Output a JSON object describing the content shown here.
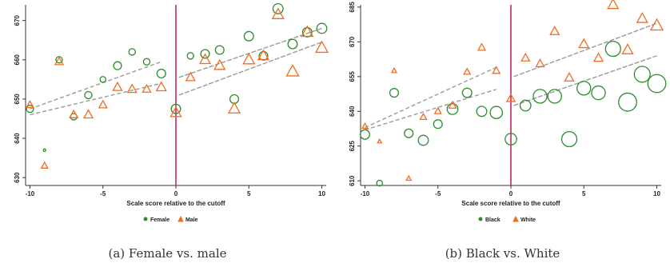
{
  "chart_data": [
    {
      "type": "scatter",
      "xlabel": "Scale score relative to the cutoff",
      "ylabel": "",
      "xlim": [
        -10.3,
        10.3
      ],
      "ylim": [
        628,
        674
      ],
      "x_ticks": [
        -10,
        -5,
        0,
        5,
        10
      ],
      "y_ticks": [
        630,
        640,
        650,
        660,
        670
      ],
      "y_tick_labels": [
        "630",
        "640",
        "650",
        "660",
        "670"
      ],
      "cutoff_x": 0,
      "legend_position": "bottom",
      "series": [
        {
          "name": "Female",
          "marker": "circle",
          "color": "#2e8b2e",
          "points": [
            {
              "x": -10,
              "y": 647.5,
              "s": 1.0
            },
            {
              "x": -9,
              "y": 637.0,
              "s": 0.35
            },
            {
              "x": -8,
              "y": 660.0,
              "s": 0.9
            },
            {
              "x": -7,
              "y": 645.5,
              "s": 0.9
            },
            {
              "x": -6,
              "y": 651.0,
              "s": 1.0
            },
            {
              "x": -5,
              "y": 655.0,
              "s": 0.8
            },
            {
              "x": -4,
              "y": 658.5,
              "s": 1.1
            },
            {
              "x": -3,
              "y": 662.0,
              "s": 0.9
            },
            {
              "x": -2,
              "y": 659.5,
              "s": 0.9
            },
            {
              "x": -1,
              "y": 656.5,
              "s": 1.2
            },
            {
              "x": 0,
              "y": 647.5,
              "s": 1.3
            },
            {
              "x": 1,
              "y": 661.0,
              "s": 0.9
            },
            {
              "x": 2,
              "y": 661.5,
              "s": 1.2
            },
            {
              "x": 3,
              "y": 662.5,
              "s": 1.2
            },
            {
              "x": 4,
              "y": 650.0,
              "s": 1.2
            },
            {
              "x": 5,
              "y": 666.0,
              "s": 1.3
            },
            {
              "x": 6,
              "y": 661.0,
              "s": 1.2
            },
            {
              "x": 7,
              "y": 673.0,
              "s": 1.4
            },
            {
              "x": 8,
              "y": 664.0,
              "s": 1.3
            },
            {
              "x": 9,
              "y": 667.0,
              "s": 1.3
            },
            {
              "x": 10,
              "y": 668.0,
              "s": 1.4
            }
          ]
        },
        {
          "name": "Male",
          "marker": "triangle",
          "color": "#f26b21",
          "points": [
            {
              "x": -10,
              "y": 648.5,
              "s": 0.9
            },
            {
              "x": -9,
              "y": 633.0,
              "s": 0.8
            },
            {
              "x": -8,
              "y": 659.5,
              "s": 1.0
            },
            {
              "x": -7,
              "y": 646.0,
              "s": 1.0
            },
            {
              "x": -6,
              "y": 646.0,
              "s": 1.1
            },
            {
              "x": -5,
              "y": 648.5,
              "s": 1.0
            },
            {
              "x": -4,
              "y": 653.0,
              "s": 1.1
            },
            {
              "x": -3,
              "y": 652.5,
              "s": 1.1
            },
            {
              "x": -2,
              "y": 652.5,
              "s": 1.0
            },
            {
              "x": -1,
              "y": 653.0,
              "s": 1.2
            },
            {
              "x": 0,
              "y": 646.5,
              "s": 1.3
            },
            {
              "x": 1,
              "y": 655.5,
              "s": 1.1
            },
            {
              "x": 2,
              "y": 660.0,
              "s": 1.3
            },
            {
              "x": 3,
              "y": 658.5,
              "s": 1.3
            },
            {
              "x": 4,
              "y": 647.5,
              "s": 1.4
            },
            {
              "x": 5,
              "y": 660.0,
              "s": 1.4
            },
            {
              "x": 6,
              "y": 661.0,
              "s": 1.3
            },
            {
              "x": 7,
              "y": 671.5,
              "s": 1.4
            },
            {
              "x": 8,
              "y": 657.0,
              "s": 1.5
            },
            {
              "x": 9,
              "y": 667.0,
              "s": 1.4
            },
            {
              "x": 10,
              "y": 663.0,
              "s": 1.5
            }
          ]
        }
      ],
      "fit_lines": [
        {
          "x": [
            -10,
            -1
          ],
          "y": [
            647.5,
            659.5
          ]
        },
        {
          "x": [
            -10,
            -1
          ],
          "y": [
            646.0,
            654.0
          ]
        },
        {
          "x": [
            0.2,
            10
          ],
          "y": [
            655.5,
            668.0
          ]
        },
        {
          "x": [
            0.2,
            10
          ],
          "y": [
            651.0,
            664.5
          ]
        }
      ],
      "caption": "(a) Female vs. male"
    },
    {
      "type": "scatter",
      "xlabel": "Scale score relative to the cutoff",
      "ylabel": "",
      "xlim": [
        -10.3,
        10.3
      ],
      "ylim": [
        608,
        686
      ],
      "x_ticks": [
        -10,
        -5,
        0,
        5,
        10
      ],
      "y_ticks": [
        610,
        625,
        640,
        655,
        670,
        685
      ],
      "y_tick_labels": [
        "610",
        "625",
        "640",
        "655",
        "670",
        "685"
      ],
      "cutoff_x": 0,
      "legend_position": "bottom",
      "series": [
        {
          "name": "Black",
          "marker": "circle",
          "color": "#2e8b2e",
          "points": [
            {
              "x": -10,
              "y": 630.0,
              "s": 1.3
            },
            {
              "x": -9,
              "y": 609.0,
              "s": 0.8
            },
            {
              "x": -8,
              "y": 648.0,
              "s": 1.2
            },
            {
              "x": -7,
              "y": 630.5,
              "s": 1.2
            },
            {
              "x": -6,
              "y": 627.5,
              "s": 1.4
            },
            {
              "x": -5,
              "y": 634.5,
              "s": 1.2
            },
            {
              "x": -4,
              "y": 641.0,
              "s": 1.5
            },
            {
              "x": -3,
              "y": 648.0,
              "s": 1.3
            },
            {
              "x": -2,
              "y": 640.0,
              "s": 1.4
            },
            {
              "x": -1,
              "y": 639.5,
              "s": 1.7
            },
            {
              "x": 0,
              "y": 628.0,
              "s": 1.6
            },
            {
              "x": 1,
              "y": 642.5,
              "s": 1.5
            },
            {
              "x": 2,
              "y": 646.5,
              "s": 1.9
            },
            {
              "x": 3,
              "y": 646.5,
              "s": 1.9
            },
            {
              "x": 4,
              "y": 628.0,
              "s": 2.1
            },
            {
              "x": 5,
              "y": 650.0,
              "s": 1.9
            },
            {
              "x": 6,
              "y": 648.0,
              "s": 1.9
            },
            {
              "x": 7,
              "y": 667.0,
              "s": 2.1
            },
            {
              "x": 8,
              "y": 644.0,
              "s": 2.5
            },
            {
              "x": 9,
              "y": 656.0,
              "s": 2.2
            },
            {
              "x": 10,
              "y": 652.0,
              "s": 2.5
            }
          ]
        },
        {
          "name": "White",
          "marker": "triangle",
          "color": "#f26b21",
          "points": [
            {
              "x": -10,
              "y": 633.5,
              "s": 0.7
            },
            {
              "x": -9,
              "y": 627.0,
              "s": 0.5
            },
            {
              "x": -8,
              "y": 657.5,
              "s": 0.6
            },
            {
              "x": -7,
              "y": 611.0,
              "s": 0.6
            },
            {
              "x": -6,
              "y": 637.5,
              "s": 0.8
            },
            {
              "x": -5,
              "y": 640.0,
              "s": 0.8
            },
            {
              "x": -4,
              "y": 642.5,
              "s": 0.9
            },
            {
              "x": -3,
              "y": 657.0,
              "s": 0.8
            },
            {
              "x": -2,
              "y": 667.5,
              "s": 0.9
            },
            {
              "x": -1,
              "y": 657.5,
              "s": 0.9
            },
            {
              "x": 0,
              "y": 645.5,
              "s": 1.0
            },
            {
              "x": 1,
              "y": 663.0,
              "s": 1.0
            },
            {
              "x": 2,
              "y": 660.5,
              "s": 1.0
            },
            {
              "x": 3,
              "y": 674.5,
              "s": 1.1
            },
            {
              "x": 4,
              "y": 654.5,
              "s": 1.1
            },
            {
              "x": 5,
              "y": 669.0,
              "s": 1.2
            },
            {
              "x": 6,
              "y": 663.0,
              "s": 1.1
            },
            {
              "x": 7,
              "y": 686.0,
              "s": 1.3
            },
            {
              "x": 8,
              "y": 666.5,
              "s": 1.3
            },
            {
              "x": 9,
              "y": 680.0,
              "s": 1.3
            },
            {
              "x": 10,
              "y": 677.0,
              "s": 1.5
            }
          ]
        }
      ],
      "fit_lines": [
        {
          "x": [
            -10,
            -1
          ],
          "y": [
            633.0,
            659.0
          ]
        },
        {
          "x": [
            -10,
            -1
          ],
          "y": [
            632.0,
            649.5
          ]
        },
        {
          "x": [
            0.2,
            10
          ],
          "y": [
            655.0,
            678.0
          ]
        },
        {
          "x": [
            0.2,
            10
          ],
          "y": [
            642.5,
            664.0
          ]
        }
      ],
      "caption": "(b) Black vs. White"
    }
  ],
  "colors": {
    "circle_marker": "#2e8b2e",
    "triangle_marker": "#f26b21",
    "cutoff_line": "#c2185b",
    "fit_line": "#9a9a9a",
    "axis": "#333333"
  }
}
